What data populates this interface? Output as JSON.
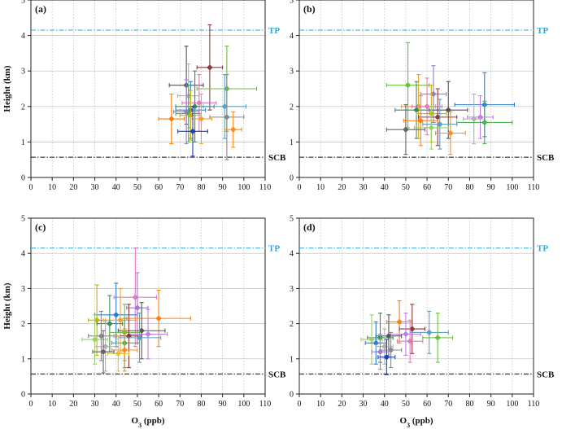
{
  "chart_data": {
    "type": "scatter",
    "xlabel_main": "O",
    "xlabel_sub": "3",
    "xlabel_unit": " (ppb)",
    "ylabel": "Height (km)",
    "xlim": [
      0,
      110
    ],
    "ylim": [
      0,
      5
    ],
    "xticks": [
      "0",
      "10",
      "20",
      "30",
      "40",
      "50",
      "60",
      "70",
      "80",
      "90",
      "100",
      "110"
    ],
    "yticks": [
      "0",
      "1",
      "2",
      "3",
      "4",
      "5"
    ],
    "grid": true,
    "ref_lines": [
      {
        "label": "TP",
        "y": 4.15,
        "color": "#29a8e0",
        "style": "dashdot"
      },
      {
        "label": "SCB",
        "y": 0.57,
        "color": "#111111",
        "style": "dashdot"
      }
    ],
    "panels": [
      {
        "label": "(a)",
        "points": [
          {
            "x": 73,
            "y": 2.6,
            "xerr": 8,
            "yerr": 1.1,
            "color": "#555555"
          },
          {
            "x": 84,
            "y": 3.1,
            "xerr": 6,
            "yerr": 1.2,
            "color": "#8b3a3a"
          },
          {
            "x": 92,
            "y": 2.5,
            "xerr": 14,
            "yerr": 1.2,
            "color": "#6abf40"
          },
          {
            "x": 74,
            "y": 2.3,
            "xerr": 5,
            "yerr": 0.9,
            "color": "#b0b0b0"
          },
          {
            "x": 79,
            "y": 2.1,
            "xerr": 8,
            "yerr": 0.8,
            "color": "#e377c2"
          },
          {
            "x": 77,
            "y": 2.0,
            "xerr": 9,
            "yerr": 1.0,
            "color": "#3c8c5a"
          },
          {
            "x": 91,
            "y": 2.0,
            "xerr": 10,
            "yerr": 0.9,
            "color": "#5aa0c8"
          },
          {
            "x": 75,
            "y": 1.9,
            "xerr": 7,
            "yerr": 0.8,
            "color": "#2a7fd4"
          },
          {
            "x": 73,
            "y": 1.85,
            "xerr": 6,
            "yerr": 0.9,
            "color": "#9a7bd0"
          },
          {
            "x": 74,
            "y": 1.8,
            "xerr": 6,
            "yerr": 0.8,
            "color": "#4caf50"
          },
          {
            "x": 75,
            "y": 1.75,
            "xerr": 5,
            "yerr": 0.7,
            "color": "#c8b400"
          },
          {
            "x": 92,
            "y": 1.7,
            "xerr": 8,
            "yerr": 1.2,
            "color": "#888888"
          },
          {
            "x": 66,
            "y": 1.65,
            "xerr": 6,
            "yerr": 0.7,
            "color": "#ff7f0e"
          },
          {
            "x": 80,
            "y": 1.65,
            "xerr": 5,
            "yerr": 0.7,
            "color": "#f0a030"
          },
          {
            "x": 76,
            "y": 1.3,
            "xerr": 7,
            "yerr": 0.7,
            "color": "#1f3fbf"
          },
          {
            "x": 95,
            "y": 1.35,
            "xerr": 4,
            "yerr": 0.5,
            "color": "#ff8c1a"
          }
        ]
      },
      {
        "label": "(b)",
        "points": [
          {
            "x": 51,
            "y": 2.6,
            "xerr": 10,
            "yerr": 1.2,
            "color": "#6abf40"
          },
          {
            "x": 63,
            "y": 2.35,
            "xerr": 6,
            "yerr": 0.8,
            "color": "#9a7bd0"
          },
          {
            "x": 87,
            "y": 2.05,
            "xerr": 14,
            "yerr": 0.9,
            "color": "#2a7fd4"
          },
          {
            "x": 70,
            "y": 1.9,
            "xerr": 9,
            "yerr": 0.8,
            "color": "#555555"
          },
          {
            "x": 56,
            "y": 2.0,
            "xerr": 8,
            "yerr": 0.9,
            "color": "#f0a030"
          },
          {
            "x": 60,
            "y": 2.0,
            "xerr": 7,
            "yerr": 0.8,
            "color": "#e377c2"
          },
          {
            "x": 55,
            "y": 1.9,
            "xerr": 10,
            "yerr": 0.8,
            "color": "#3c8c5a"
          },
          {
            "x": 62,
            "y": 1.8,
            "xerr": 7,
            "yerr": 0.8,
            "color": "#c8b400"
          },
          {
            "x": 65,
            "y": 1.7,
            "xerr": 9,
            "yerr": 0.8,
            "color": "#8b3a3a"
          },
          {
            "x": 85,
            "y": 1.7,
            "xerr": 6,
            "yerr": 0.6,
            "color": "#c080e0"
          },
          {
            "x": 82,
            "y": 1.65,
            "xerr": 5,
            "yerr": 0.7,
            "color": "#b0b0b0"
          },
          {
            "x": 87,
            "y": 1.55,
            "xerr": 13,
            "yerr": 0.6,
            "color": "#4caf50"
          },
          {
            "x": 57,
            "y": 1.6,
            "xerr": 8,
            "yerr": 0.7,
            "color": "#ff7f0e"
          },
          {
            "x": 66,
            "y": 1.5,
            "xerr": 8,
            "yerr": 0.7,
            "color": "#5aa0c8"
          },
          {
            "x": 62,
            "y": 1.4,
            "xerr": 8,
            "yerr": 0.6,
            "color": "#9ad06a"
          },
          {
            "x": 50,
            "y": 1.35,
            "xerr": 9,
            "yerr": 0.7,
            "color": "#666666"
          },
          {
            "x": 71,
            "y": 1.25,
            "xerr": 7,
            "yerr": 0.6,
            "color": "#ff8c1a"
          }
        ]
      },
      {
        "label": "(c)",
        "points": [
          {
            "x": 49,
            "y": 2.75,
            "xerr": 10,
            "yerr": 1.4,
            "color": "#e377c2"
          },
          {
            "x": 40,
            "y": 2.25,
            "xerr": 10,
            "yerr": 0.9,
            "color": "#2a7fd4"
          },
          {
            "x": 50,
            "y": 2.45,
            "xerr": 5,
            "yerr": 1.0,
            "color": "#9a7bd0"
          },
          {
            "x": 60,
            "y": 2.15,
            "xerr": 15,
            "yerr": 0.8,
            "color": "#ff7f0e"
          },
          {
            "x": 42,
            "y": 2.1,
            "xerr": 8,
            "yerr": 0.9,
            "color": "#f0a030"
          },
          {
            "x": 31,
            "y": 2.1,
            "xerr": 4,
            "yerr": 1.0,
            "color": "#c8b400"
          },
          {
            "x": 37,
            "y": 2.0,
            "xerr": 6,
            "yerr": 0.8,
            "color": "#3c8c5a"
          },
          {
            "x": 52,
            "y": 1.8,
            "xerr": 11,
            "yerr": 0.8,
            "color": "#555555"
          },
          {
            "x": 44,
            "y": 1.75,
            "xerr": 7,
            "yerr": 0.8,
            "color": "#6abf40"
          },
          {
            "x": 55,
            "y": 1.7,
            "xerr": 9,
            "yerr": 0.7,
            "color": "#c080e0"
          },
          {
            "x": 33,
            "y": 1.65,
            "xerr": 6,
            "yerr": 0.7,
            "color": "#888888"
          },
          {
            "x": 46,
            "y": 1.65,
            "xerr": 6,
            "yerr": 0.9,
            "color": "#8b3a3a"
          },
          {
            "x": 51,
            "y": 1.6,
            "xerr": 10,
            "yerr": 0.7,
            "color": "#5aa0c8"
          },
          {
            "x": 30,
            "y": 1.55,
            "xerr": 6,
            "yerr": 0.7,
            "color": "#9ad06a"
          },
          {
            "x": 44,
            "y": 1.45,
            "xerr": 6,
            "yerr": 0.7,
            "color": "#4caf50"
          },
          {
            "x": 35,
            "y": 1.35,
            "xerr": 5,
            "yerr": 0.7,
            "color": "#b0b0b0"
          },
          {
            "x": 44,
            "y": 1.25,
            "xerr": 6,
            "yerr": 0.6,
            "color": "#ff8c1a"
          },
          {
            "x": 41,
            "y": 1.15,
            "xerr": 5,
            "yerr": 0.5,
            "color": "#e0c040"
          },
          {
            "x": 34,
            "y": 1.2,
            "xerr": 5,
            "yerr": 0.6,
            "color": "#666666"
          }
        ]
      },
      {
        "label": "(d)",
        "points": [
          {
            "x": 47,
            "y": 2.05,
            "xerr": 6,
            "yerr": 0.6,
            "color": "#ff7f0e"
          },
          {
            "x": 53,
            "y": 1.85,
            "xerr": 6,
            "yerr": 0.7,
            "color": "#8b3a3a"
          },
          {
            "x": 61,
            "y": 1.75,
            "xerr": 9,
            "yerr": 0.6,
            "color": "#5aa0c8"
          },
          {
            "x": 65,
            "y": 1.6,
            "xerr": 7,
            "yerr": 0.7,
            "color": "#6abf40"
          },
          {
            "x": 50,
            "y": 1.7,
            "xerr": 7,
            "yerr": 0.6,
            "color": "#c080e0"
          },
          {
            "x": 42,
            "y": 1.65,
            "xerr": 6,
            "yerr": 0.6,
            "color": "#555555"
          },
          {
            "x": 38,
            "y": 1.6,
            "xerr": 6,
            "yerr": 0.7,
            "color": "#3c8c5a"
          },
          {
            "x": 34,
            "y": 1.55,
            "xerr": 5,
            "yerr": 0.7,
            "color": "#9ad06a"
          },
          {
            "x": 52,
            "y": 1.5,
            "xerr": 6,
            "yerr": 0.6,
            "color": "#e377c2"
          },
          {
            "x": 36,
            "y": 1.45,
            "xerr": 5,
            "yerr": 0.6,
            "color": "#2a7fd4"
          },
          {
            "x": 40,
            "y": 1.35,
            "xerr": 4,
            "yerr": 0.5,
            "color": "#b0b0b0"
          },
          {
            "x": 43,
            "y": 1.25,
            "xerr": 5,
            "yerr": 0.5,
            "color": "#888888"
          },
          {
            "x": 38,
            "y": 1.2,
            "xerr": 4,
            "yerr": 0.5,
            "color": "#9a7bd0"
          },
          {
            "x": 41,
            "y": 1.05,
            "xerr": 4,
            "yerr": 0.5,
            "color": "#1f3fbf"
          }
        ]
      }
    ]
  }
}
